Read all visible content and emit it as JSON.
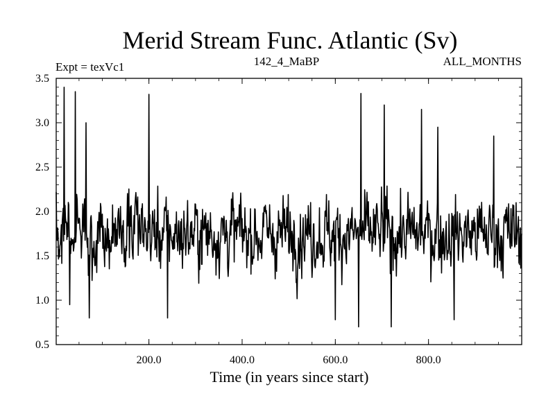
{
  "chart_data": {
    "type": "line",
    "title": "Merid Stream Func. Atlantic (Sv)",
    "subtitle_left": "Expt = texVc1",
    "subtitle_center": "142_4_MaBP",
    "subtitle_right": "ALL_MONTHS",
    "xlabel": "Time (in years since start)",
    "ylabel": "",
    "xlim": [
      1,
      1000
    ],
    "ylim": [
      0.5,
      3.5
    ],
    "xticks": [
      200,
      400,
      600,
      800
    ],
    "xtick_labels": [
      "200.0",
      "400.0",
      "600.0",
      "800.0"
    ],
    "yticks": [
      0.5,
      1.0,
      1.5,
      2.0,
      2.5,
      3.0,
      3.5
    ],
    "ytick_labels": [
      "0.5",
      "1.0",
      "1.5",
      "2.0",
      "2.5",
      "3.0",
      "3.5"
    ],
    "series_mean_estimate": 1.75,
    "series_min_estimate": 0.7,
    "series_max_estimate": 3.4,
    "n_points": 1000,
    "peaks": [
      {
        "x": 18,
        "y": 3.4
      },
      {
        "x": 42,
        "y": 3.35
      },
      {
        "x": 65,
        "y": 3.0
      },
      {
        "x": 200,
        "y": 3.32
      },
      {
        "x": 655,
        "y": 3.33
      },
      {
        "x": 705,
        "y": 3.2
      },
      {
        "x": 785,
        "y": 3.15
      },
      {
        "x": 820,
        "y": 2.95
      },
      {
        "x": 940,
        "y": 2.85
      }
    ],
    "troughs": [
      {
        "x": 30,
        "y": 0.95
      },
      {
        "x": 72,
        "y": 0.8
      },
      {
        "x": 240,
        "y": 0.8
      },
      {
        "x": 600,
        "y": 0.78
      },
      {
        "x": 650,
        "y": 0.7
      },
      {
        "x": 720,
        "y": 0.7
      },
      {
        "x": 855,
        "y": 0.78
      }
    ]
  }
}
